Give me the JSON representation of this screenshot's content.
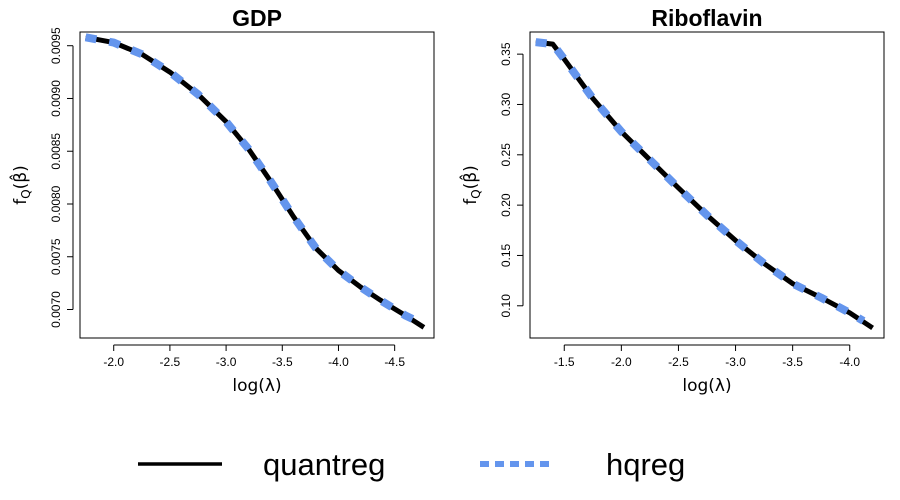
{
  "chart_data": [
    {
      "type": "line",
      "title": "GDP",
      "xlabel": "log(λ)",
      "ylabel_base": "f",
      "ylabel_sub": "Q",
      "ylabel_arg": "(β̂)",
      "xlim": [
        -1.7,
        -4.85
      ],
      "ylim": [
        0.00673,
        0.00963
      ],
      "xticks": [
        -2.0,
        -2.5,
        -3.0,
        -3.5,
        -4.0,
        -4.5
      ],
      "xtick_labels": [
        "-2.0",
        "-2.5",
        "-3.0",
        "-3.5",
        "-4.0",
        "-4.5"
      ],
      "yticks": [
        0.007,
        0.0075,
        0.008,
        0.0085,
        0.009,
        0.0095
      ],
      "ytick_labels": [
        "0.0070",
        "0.0075",
        "0.0080",
        "0.0085",
        "0.0090",
        "0.0095"
      ],
      "series": [
        {
          "name": "quantreg",
          "x": [
            -1.75,
            -2.0,
            -2.25,
            -2.5,
            -2.75,
            -3.0,
            -3.2,
            -3.4,
            -3.6,
            -3.8,
            -4.0,
            -4.2,
            -4.4,
            -4.6,
            -4.76
          ],
          "y": [
            0.00958,
            0.00953,
            0.00942,
            0.00925,
            0.00904,
            0.00878,
            0.00852,
            0.00821,
            0.00788,
            0.00758,
            0.00737,
            0.00721,
            0.00707,
            0.00694,
            0.00683
          ]
        },
        {
          "name": "hqreg",
          "x": [
            -1.75,
            -2.0,
            -2.25,
            -2.5,
            -2.75,
            -3.0,
            -3.2,
            -3.4,
            -3.6,
            -3.8,
            -4.0,
            -4.2,
            -4.4,
            -4.6,
            -4.7
          ],
          "y": [
            0.00958,
            0.00953,
            0.00942,
            0.00925,
            0.00904,
            0.00878,
            0.00852,
            0.00821,
            0.00788,
            0.00758,
            0.00737,
            0.00721,
            0.00707,
            0.00694,
            0.00689
          ]
        }
      ]
    },
    {
      "type": "line",
      "title": "Riboflavin",
      "xlabel": "log(λ)",
      "ylabel_base": "f",
      "ylabel_sub": "Q",
      "ylabel_arg": "(β̂)",
      "xlim": [
        -1.2,
        -4.3
      ],
      "ylim": [
        0.068,
        0.372
      ],
      "xticks": [
        -1.5,
        -2.0,
        -2.5,
        -3.0,
        -3.5,
        -4.0
      ],
      "xtick_labels": [
        "-1.5",
        "-2.0",
        "-2.5",
        "-3.0",
        "-3.5",
        "-4.0"
      ],
      "yticks": [
        0.1,
        0.15,
        0.2,
        0.25,
        0.3,
        0.35
      ],
      "ytick_labels": [
        "0.10",
        "0.15",
        "0.20",
        "0.25",
        "0.30",
        "0.35"
      ],
      "series": [
        {
          "name": "quantreg",
          "x": [
            -1.25,
            -1.4,
            -1.5,
            -1.75,
            -2.0,
            -2.25,
            -2.5,
            -2.75,
            -3.0,
            -3.25,
            -3.5,
            -3.75,
            -4.0,
            -4.2
          ],
          "y": [
            0.362,
            0.36,
            0.345,
            0.306,
            0.273,
            0.245,
            0.217,
            0.19,
            0.165,
            0.142,
            0.122,
            0.108,
            0.093,
            0.078
          ]
        },
        {
          "name": "hqreg",
          "x": [
            -1.25,
            -1.4,
            -1.5,
            -1.75,
            -2.0,
            -2.25,
            -2.5,
            -2.75,
            -3.0,
            -3.25,
            -3.5,
            -3.75,
            -4.0,
            -4.12
          ],
          "y": [
            0.362,
            0.36,
            0.345,
            0.306,
            0.273,
            0.245,
            0.217,
            0.19,
            0.165,
            0.142,
            0.122,
            0.108,
            0.093,
            0.085
          ]
        }
      ]
    }
  ],
  "legend": {
    "items": [
      {
        "label": "quantreg",
        "color": "#000000",
        "style": "solid"
      },
      {
        "label": "hqreg",
        "color": "#6495ED",
        "style": "dashed"
      }
    ]
  },
  "colors": {
    "quantreg": "#000000",
    "hqreg": "#6495ED"
  }
}
